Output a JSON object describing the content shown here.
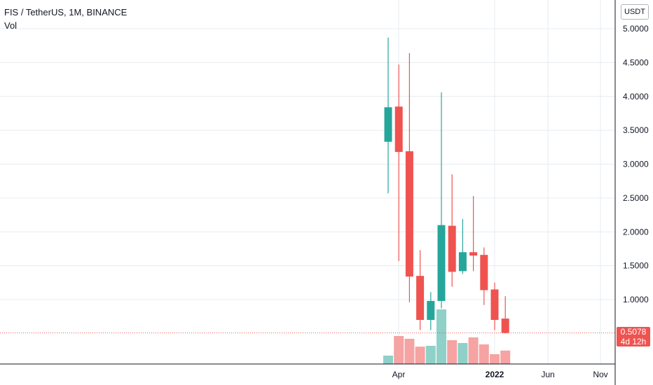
{
  "header": {
    "symbol_line": "FIS / TetherUS, 1M, BINANCE",
    "volume_label": "Vol"
  },
  "currency_button": "USDT",
  "last_price": {
    "value": "0.5078",
    "countdown": "4d 12h",
    "color": "#ef5350"
  },
  "colors": {
    "up": "#26a69a",
    "down": "#ef5350",
    "vol_up": "#8fd1c8",
    "vol_down": "#f5a3a3",
    "grid": "#e6ecf0"
  },
  "chart_data": {
    "type": "candlestick",
    "y_ticks": [
      "5.0000",
      "4.5000",
      "4.0000",
      "3.5000",
      "3.0000",
      "2.5000",
      "2.0000",
      "1.5000",
      "1.0000"
    ],
    "y_tick_values": [
      5.0,
      4.5,
      4.0,
      3.5,
      3.0,
      2.5,
      2.0,
      1.5,
      1.0
    ],
    "x_ticks": [
      "Apr",
      "2022",
      "Jun",
      "Nov"
    ],
    "ylim": [
      0.0,
      5.2
    ],
    "grid": true,
    "candles": [
      {
        "o": 3.33,
        "h": 4.87,
        "l": 2.57,
        "c": 3.84,
        "v": 0.3
      },
      {
        "o": 3.85,
        "h": 4.47,
        "l": 1.57,
        "c": 3.18,
        "v": 1.0
      },
      {
        "o": 3.19,
        "h": 4.64,
        "l": 0.96,
        "c": 1.34,
        "v": 0.9
      },
      {
        "o": 1.35,
        "h": 1.73,
        "l": 0.55,
        "c": 0.7,
        "v": 0.62
      },
      {
        "o": 0.7,
        "h": 1.11,
        "l": 0.55,
        "c": 0.98,
        "v": 0.65
      },
      {
        "o": 0.98,
        "h": 4.06,
        "l": 0.87,
        "c": 2.1,
        "v": 1.95
      },
      {
        "o": 2.09,
        "h": 2.85,
        "l": 1.19,
        "c": 1.41,
        "v": 0.85
      },
      {
        "o": 1.42,
        "h": 2.19,
        "l": 1.38,
        "c": 1.7,
        "v": 0.75
      },
      {
        "o": 1.7,
        "h": 2.53,
        "l": 1.42,
        "c": 1.65,
        "v": 0.95
      },
      {
        "o": 1.66,
        "h": 1.77,
        "l": 0.92,
        "c": 1.14,
        "v": 0.7
      },
      {
        "o": 1.15,
        "h": 1.25,
        "l": 0.55,
        "c": 0.7,
        "v": 0.35
      },
      {
        "o": 0.72,
        "h": 1.05,
        "l": 0.5,
        "c": 0.5078,
        "v": 0.48
      }
    ]
  }
}
